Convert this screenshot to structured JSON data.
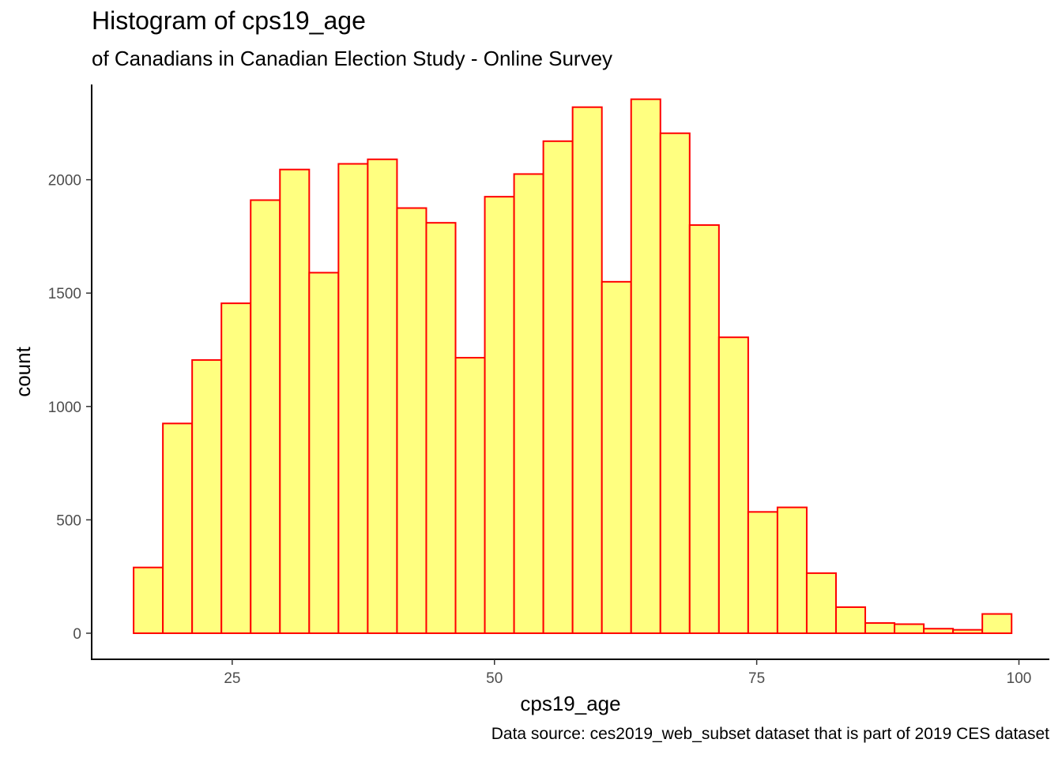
{
  "chart_data": {
    "type": "bar",
    "title": "Histogram of cps19_age",
    "subtitle": "of Canadians in Canadian Election Study - Online Survey",
    "caption": "Data source: ces2019_web_subset dataset that is part of 2019 CES dataset",
    "xlabel": "cps19_age",
    "ylabel": "count",
    "xlim": [
      11.6,
      102.9
    ],
    "ylim": [
      -115,
      2420
    ],
    "x_ticks": [
      25,
      50,
      75,
      100
    ],
    "y_ticks": [
      0,
      500,
      1000,
      1500,
      2000
    ],
    "x_tick_labels": [
      "25",
      "50",
      "75",
      "100"
    ],
    "y_tick_labels": [
      "0",
      "500",
      "1000",
      "1500",
      "2000"
    ],
    "bin_width": 2.79,
    "bins_start": 15.6,
    "values": [
      290,
      925,
      1205,
      1455,
      1910,
      2045,
      1590,
      2070,
      2090,
      1875,
      1810,
      1215,
      1925,
      2025,
      2170,
      2320,
      1550,
      2355,
      2205,
      1800,
      1305,
      535,
      555,
      265,
      115,
      45,
      40,
      20,
      15,
      85
    ],
    "fill_color": "#ffff80",
    "border_color": "#ff0000",
    "grid": false,
    "legend": "none"
  }
}
